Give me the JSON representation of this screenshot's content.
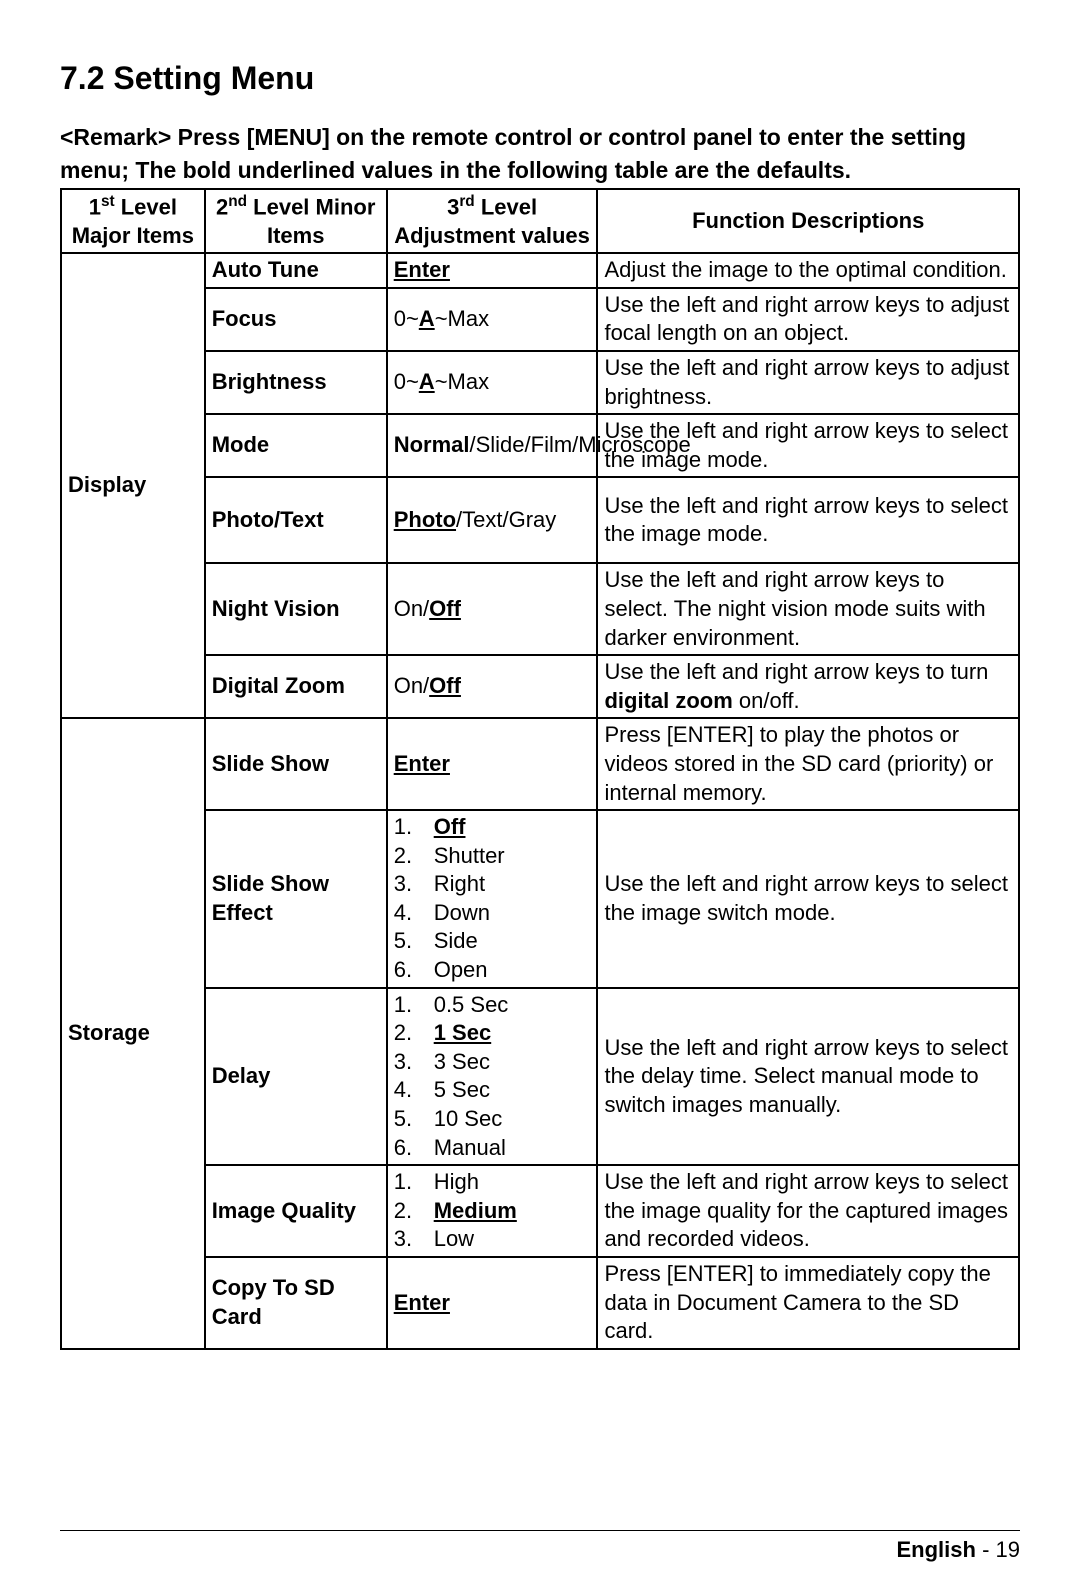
{
  "heading": "7.2 Setting Menu",
  "remark": "<Remark> Press [MENU] on the remote control or control panel to enter the setting menu; The bold underlined values in the following table are the defaults.",
  "headers": {
    "c1a": "1",
    "c1sup": "st",
    "c1b": " Level Major Items",
    "c2a": "2",
    "c2sup": "nd",
    "c2b": " Level Minor Items",
    "c3a": "3",
    "c3sup": "rd",
    "c3b": " Level Adjustment values",
    "c4": "Function Descriptions"
  },
  "groups": [
    {
      "major": "Display",
      "rows": [
        {
          "minor": "Auto Tune",
          "adj_default": "Enter",
          "desc": "Adjust the image to the optimal condition."
        },
        {
          "minor": "Focus",
          "adj_pre": "0~",
          "adj_default": "A",
          "adj_post": "~Max",
          "desc": "Use the left and right arrow keys to adjust focal length on an object."
        },
        {
          "minor": "Brightness",
          "adj_pre": "0~",
          "adj_default": "A",
          "adj_post": "~Max",
          "desc": "Use the left and right arrow keys to adjust brightness."
        },
        {
          "minor": "Mode",
          "adj_bold_lead": "Normal",
          "adj_post_plain": "/Slide/Film/Microscope",
          "desc": "Use the left and right arrow keys to select the image mode."
        },
        {
          "minor": "Photo/Text",
          "adj_default": "Photo",
          "adj_post": "/Text/Gray",
          "desc": "Use the left and right arrow keys to select the image mode.",
          "tall": true
        },
        {
          "minor": "Night Vision",
          "adj_pre": "On/",
          "adj_default": "Off",
          "desc": "Use the left and right arrow keys to select. The night vision mode suits with darker environment."
        },
        {
          "minor": "Digital Zoom",
          "adj_pre": "On/",
          "adj_default": "Off",
          "desc_pre": "Use the left and right arrow keys to turn ",
          "desc_bold": "digital zoom",
          "desc_post": " on/off."
        }
      ]
    },
    {
      "major": "Storage",
      "rows": [
        {
          "minor": "Slide Show",
          "adj_default": "Enter",
          "desc": "Press [ENTER] to play the photos or videos stored in the SD card (priority) or internal memory."
        },
        {
          "minor": "Slide Show Effect",
          "options": [
            {
              "n": "1.",
              "v": "Off",
              "d": true
            },
            {
              "n": "2.",
              "v": "Shutter"
            },
            {
              "n": "3.",
              "v": "Right"
            },
            {
              "n": "4.",
              "v": "Down"
            },
            {
              "n": "5.",
              "v": "Side"
            },
            {
              "n": "6.",
              "v": "Open"
            }
          ],
          "desc": "Use the left and right arrow keys to select the image switch mode."
        },
        {
          "minor": "Delay",
          "options": [
            {
              "n": "1.",
              "v": "0.5 Sec"
            },
            {
              "n": "2.",
              "v": "1 Sec",
              "d": true
            },
            {
              "n": "3.",
              "v": "3 Sec"
            },
            {
              "n": "4.",
              "v": "5 Sec"
            },
            {
              "n": "5.",
              "v": "10 Sec"
            },
            {
              "n": "6.",
              "v": "Manual"
            }
          ],
          "desc": "Use the left and right arrow keys to select the delay time. Select manual mode to switch images manually."
        },
        {
          "minor": "Image Quality",
          "options": [
            {
              "n": "1.",
              "v": "High"
            },
            {
              "n": "2.",
              "v": "Medium",
              "d": true
            },
            {
              "n": "3.",
              "v": "Low"
            }
          ],
          "desc": "Use the left and right arrow keys to select the image quality for the captured images and recorded videos."
        },
        {
          "minor": "Copy To SD Card",
          "adj_default": "Enter",
          "desc": "Press [ENTER] to immediately copy the data in Document Camera to the SD card."
        }
      ]
    }
  ],
  "footer": {
    "lang": "English",
    "sep": " -  ",
    "page": "19"
  }
}
